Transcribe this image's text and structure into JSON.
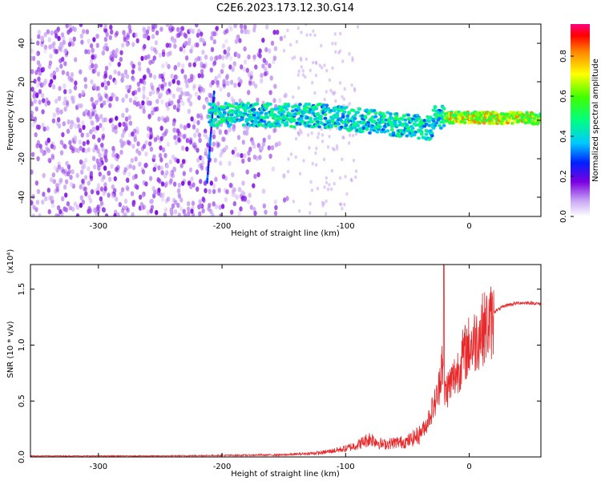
{
  "title": "C2E6.2023.173.12.30.G14",
  "chart_data": [
    {
      "type": "heatmap",
      "xlabel": "Height of straight line (km)",
      "ylabel": "Frequency (Hz)",
      "xlim": [
        -355,
        58
      ],
      "ylim": [
        -50,
        50
      ],
      "xticks": [
        -300,
        -200,
        -100,
        0
      ],
      "yticks": [
        -40,
        -20,
        0,
        20,
        40
      ],
      "colorbar": {
        "label": "Normalized spectral amplitude",
        "range": [
          0,
          0.96
        ],
        "ticks": [
          0.0,
          0.2,
          0.4,
          0.6,
          0.8
        ],
        "colormap": "rainbow"
      },
      "features": [
        {
          "name": "noise-region",
          "x_range": [
            -355,
            -145
          ],
          "y_range": [
            -50,
            50
          ],
          "amplitude": 0.12
        },
        {
          "name": "vertical-streak",
          "x": -212,
          "y_range": [
            -32,
            15
          ],
          "amplitude": 0.3
        },
        {
          "name": "carrier-band",
          "x_range": [
            -210,
            58
          ],
          "center_y_at_start": 3,
          "center_y_at_end": 1,
          "amplitude_range": [
            0.3,
            0.9
          ]
        }
      ]
    },
    {
      "type": "line",
      "xlabel": "Height of straight line (km)",
      "ylabel": "SNR (10 * v/v)",
      "y_multiplier_label": "(x10⁴)",
      "xlim": [
        -355,
        58
      ],
      "ylim": [
        0,
        1.72
      ],
      "xticks": [
        -300,
        -200,
        -100,
        0
      ],
      "yticks": [
        0.0,
        0.5,
        1.0,
        1.5
      ],
      "series": [
        {
          "color": "#e8282a",
          "x": [
            -355,
            -300,
            -250,
            -200,
            -150,
            -120,
            -100,
            -90,
            -80,
            -70,
            -60,
            -50,
            -40,
            -35,
            -30,
            -25,
            -22,
            -20,
            -15,
            -10,
            -5,
            0,
            5,
            10,
            20,
            30,
            40,
            50,
            58
          ],
          "y": [
            0.01,
            0.01,
            0.01,
            0.015,
            0.02,
            0.04,
            0.08,
            0.12,
            0.18,
            0.12,
            0.14,
            0.15,
            0.22,
            0.3,
            0.45,
            0.6,
            0.95,
            0.6,
            0.7,
            0.8,
            0.95,
            1.05,
            1.1,
            1.2,
            1.3,
            1.36,
            1.38,
            1.38,
            1.37
          ]
        }
      ]
    }
  ]
}
